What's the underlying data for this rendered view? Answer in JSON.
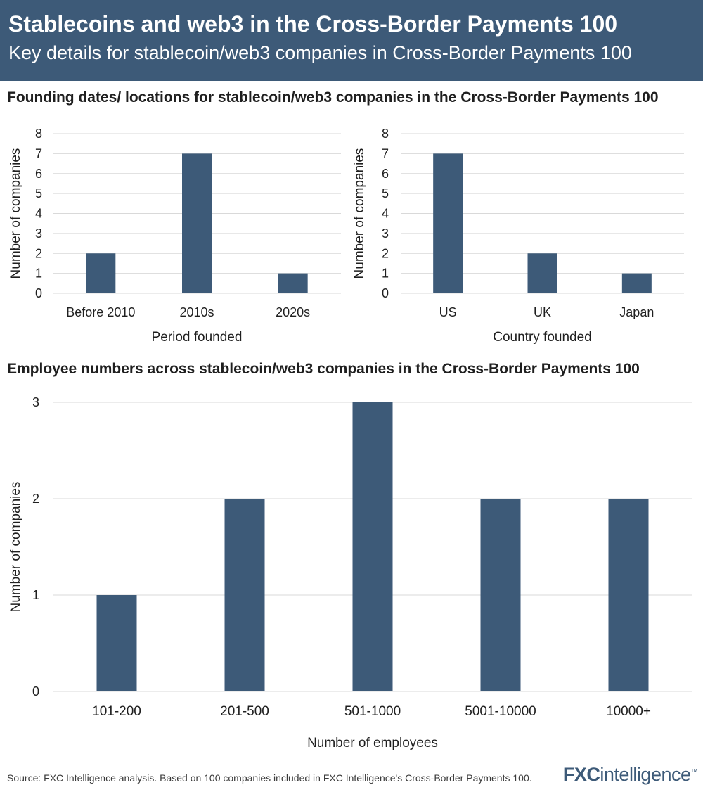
{
  "header": {
    "title": "Stablecoins and web3 in the Cross-Border Payments 100",
    "subtitle": "Key details for stablecoin/web3 companies in Cross-Border Payments 100"
  },
  "sections": {
    "founding_title": "Founding dates/ locations for stablecoin/web3 companies in the Cross-Border Payments 100",
    "employee_title": "Employee numbers across stablecoin/web3 companies in the Cross-Border Payments 100"
  },
  "chart_data": [
    {
      "type": "bar",
      "title": "",
      "categories": [
        "Before 2010",
        "2010s",
        "2020s"
      ],
      "values": [
        2,
        7,
        1
      ],
      "xlabel": "Period founded",
      "ylabel": "Number of companies",
      "ylim": [
        0,
        8
      ],
      "yticks": [
        0,
        1,
        2,
        3,
        4,
        5,
        6,
        7,
        8
      ],
      "grid": true,
      "color": "#3d5a78"
    },
    {
      "type": "bar",
      "title": "",
      "categories": [
        "US",
        "UK",
        "Japan"
      ],
      "values": [
        7,
        2,
        1
      ],
      "xlabel": "Country founded",
      "ylabel": "Number of companies",
      "ylim": [
        0,
        8
      ],
      "yticks": [
        0,
        1,
        2,
        3,
        4,
        5,
        6,
        7,
        8
      ],
      "grid": true,
      "color": "#3d5a78"
    },
    {
      "type": "bar",
      "title": "",
      "categories": [
        "101-200",
        "201-500",
        "501-1000",
        "5001-10000",
        "10000+"
      ],
      "values": [
        1,
        2,
        3,
        2,
        2
      ],
      "xlabel": "Number of employees",
      "ylabel": "Number of companies",
      "ylim": [
        0,
        3
      ],
      "yticks": [
        0,
        1,
        2,
        3
      ],
      "grid": true,
      "color": "#3d5a78"
    }
  ],
  "footer": {
    "source": "Source: FXC Intelligence analysis. Based on 100 companies included in FXC Intelligence's Cross-Border Payments 100.",
    "logo_fx": "FXC",
    "logo_rest": "intelligence",
    "logo_tm": "™"
  }
}
